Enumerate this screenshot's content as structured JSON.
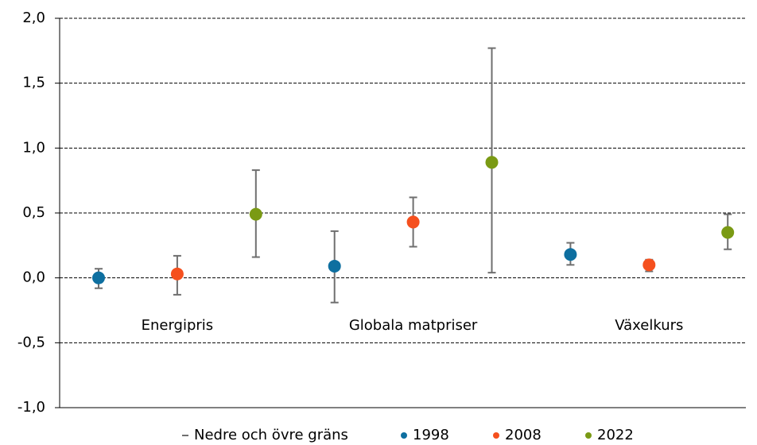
{
  "chart_data": {
    "type": "errorbar-dot",
    "categories": [
      "Energipris",
      "Globala matpriser",
      "Växelkurs"
    ],
    "error_label": "Nedre och övre gräns",
    "error_color": "#6f6f6f",
    "series": [
      {
        "name": "1998",
        "color": "#0e6fa0",
        "values": [
          0.0,
          0.09,
          0.18
        ],
        "lower": [
          -0.08,
          -0.19,
          0.1
        ],
        "upper": [
          0.07,
          0.36,
          0.27
        ]
      },
      {
        "name": "2008",
        "color": "#f5501e",
        "values": [
          0.03,
          0.43,
          0.1
        ],
        "lower": [
          -0.13,
          0.24,
          0.05
        ],
        "upper": [
          0.17,
          0.62,
          0.14
        ]
      },
      {
        "name": "2022",
        "color": "#7a9a14",
        "values": [
          0.49,
          0.89,
          0.35
        ],
        "lower": [
          0.16,
          0.04,
          0.22
        ],
        "upper": [
          0.83,
          1.77,
          0.49
        ]
      }
    ],
    "ylim": [
      -1.0,
      2.0
    ],
    "yticks": [
      {
        "value": -1.0,
        "label": "-1,0"
      },
      {
        "value": -0.5,
        "label": "-0,5"
      },
      {
        "value": 0.0,
        "label": "0,0"
      },
      {
        "value": 0.5,
        "label": "0,5"
      },
      {
        "value": 1.0,
        "label": "1,0"
      },
      {
        "value": 1.5,
        "label": "1,5"
      },
      {
        "value": 2.0,
        "label": "2,0"
      }
    ],
    "grid": true
  }
}
